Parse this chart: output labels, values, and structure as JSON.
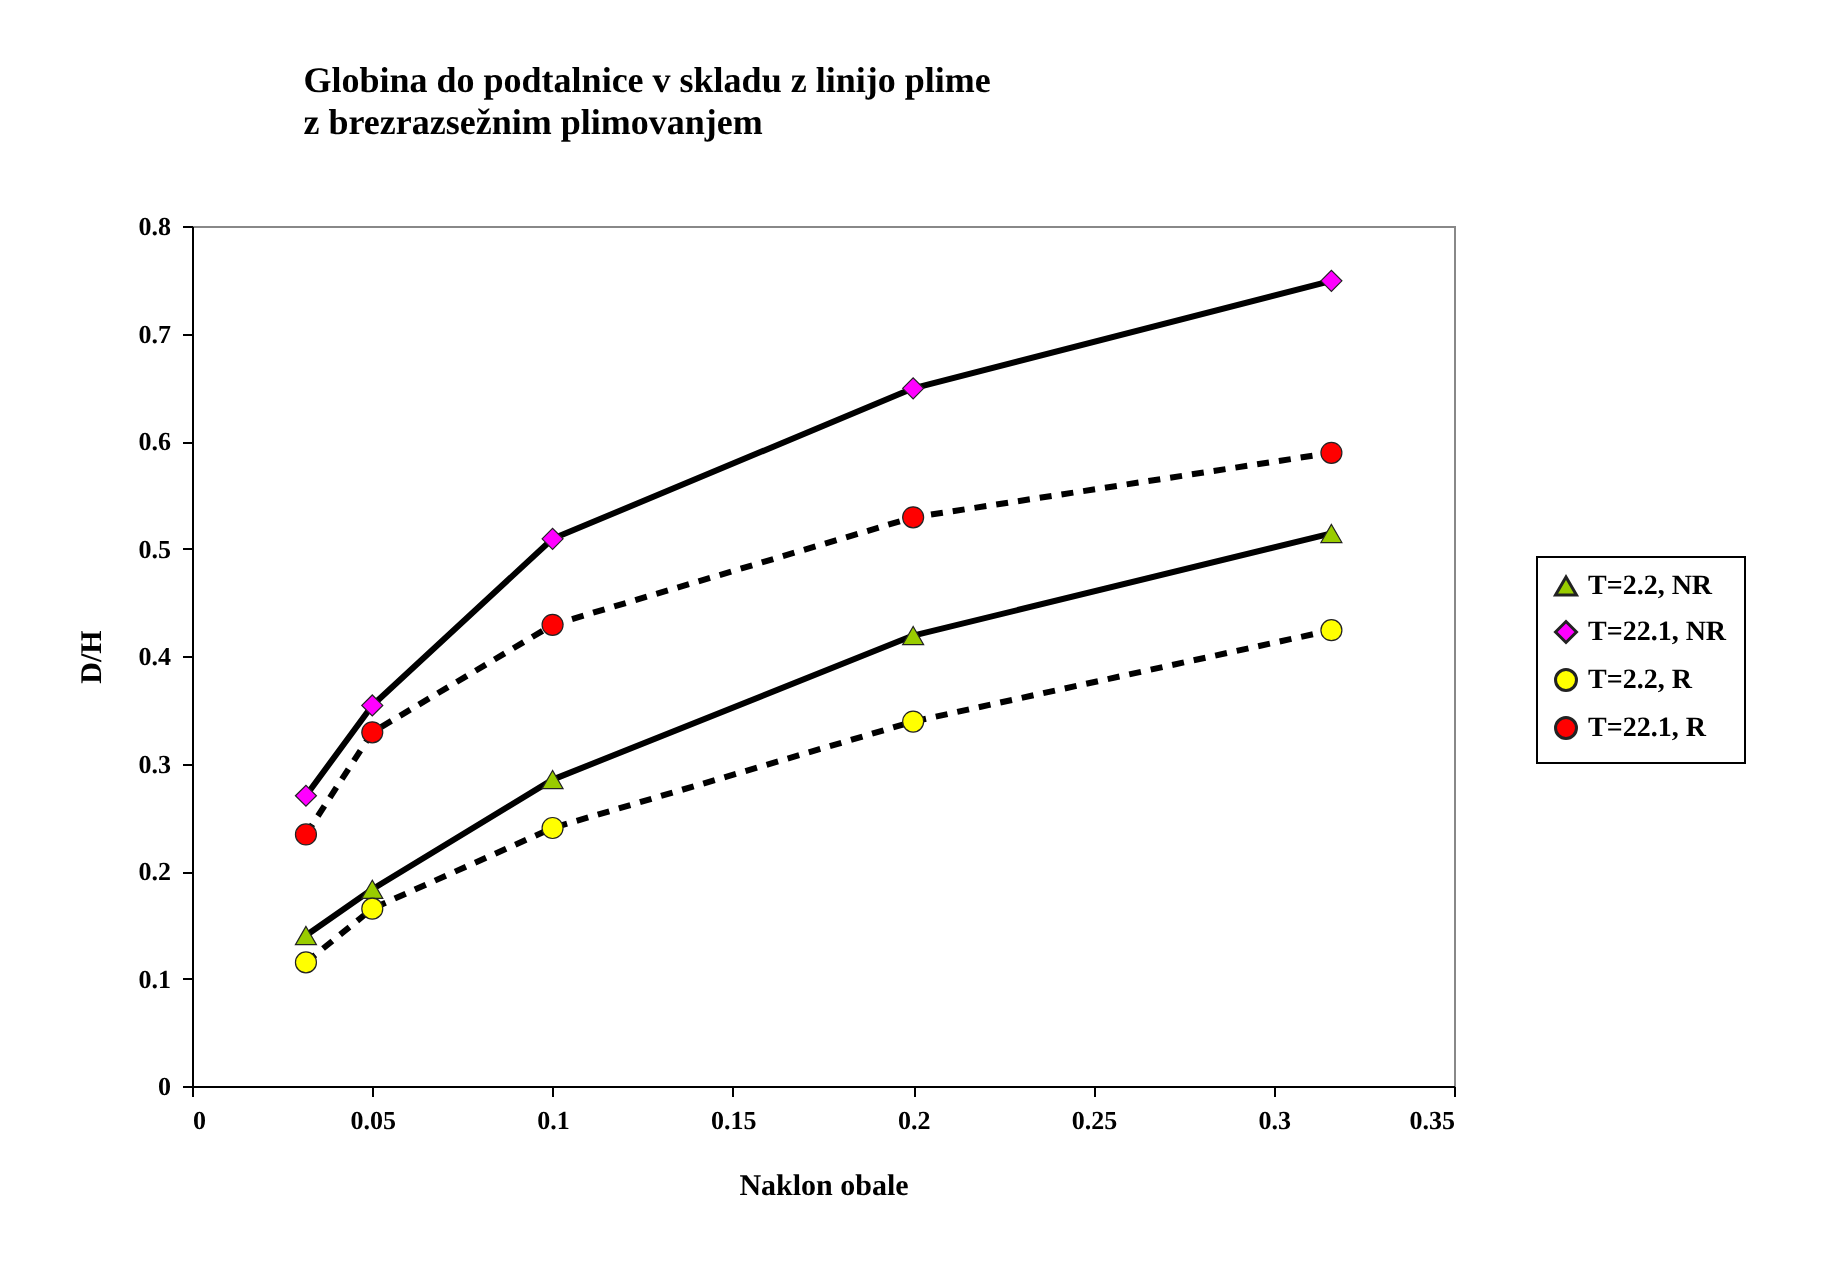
{
  "chart_data": {
    "type": "line",
    "title": "Globina do podtalnice v skladu z linijo plime\nz brezrazsežnim plimovanjem",
    "xlabel": "Naklon obale",
    "ylabel": "D/H",
    "x": [
      0.0316,
      0.05,
      0.1,
      0.2,
      0.316
    ],
    "series": [
      {
        "name": "T=2.2, NR",
        "color": "#99cc00",
        "marker": "triangle",
        "line_style": "solid",
        "values": [
          0.14,
          0.183,
          0.285,
          0.419,
          0.514
        ]
      },
      {
        "name": "T=22.1, NR",
        "color": "#ff00ff",
        "marker": "diamond",
        "line_style": "solid",
        "values": [
          0.27,
          0.354,
          0.509,
          0.649,
          0.749
        ]
      },
      {
        "name": "T=2.2, R",
        "color": "#ffff00",
        "marker": "circle",
        "line_style": "dashed",
        "values": [
          0.115,
          0.165,
          0.24,
          0.339,
          0.424
        ]
      },
      {
        "name": "T=22.1, R",
        "color": "#ff0000",
        "marker": "circle",
        "line_style": "dashed",
        "values": [
          0.234,
          0.329,
          0.429,
          0.529,
          0.589
        ]
      }
    ],
    "xlim": [
      0,
      0.35
    ],
    "xticks": [
      0,
      0.05,
      0.1,
      0.15,
      0.2,
      0.25,
      0.3,
      0.35
    ],
    "ylim": [
      0,
      0.8
    ],
    "yticks": [
      0,
      0.1,
      0.2,
      0.3,
      0.4,
      0.5,
      0.6,
      0.7,
      0.8
    ],
    "grid": false,
    "legend": "right"
  }
}
